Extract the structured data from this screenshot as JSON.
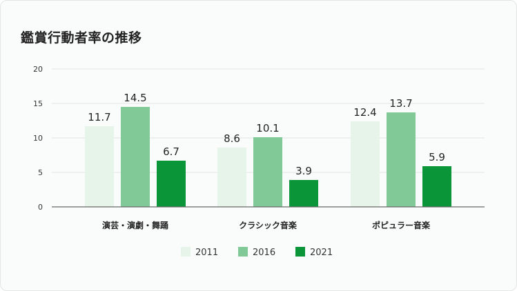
{
  "chart_data": {
    "type": "bar",
    "title": "鑑賞行動者率の推移",
    "categories": [
      "演芸・演劇・舞踊",
      "クラシック音楽",
      "ポピュラー音楽"
    ],
    "series": [
      {
        "name": "2011",
        "values": [
          11.7,
          8.6,
          12.4
        ],
        "color": "#e6f4ea"
      },
      {
        "name": "2016",
        "values": [
          14.5,
          10.1,
          13.7
        ],
        "color": "#82c998"
      },
      {
        "name": "2021",
        "values": [
          6.7,
          3.9,
          5.9
        ],
        "color": "#0a9638"
      }
    ],
    "y_ticks": [
      "0",
      "5",
      "10",
      "15",
      "20"
    ],
    "ylim": [
      0,
      20
    ],
    "grid": true,
    "legend_position": "bottom-center"
  }
}
